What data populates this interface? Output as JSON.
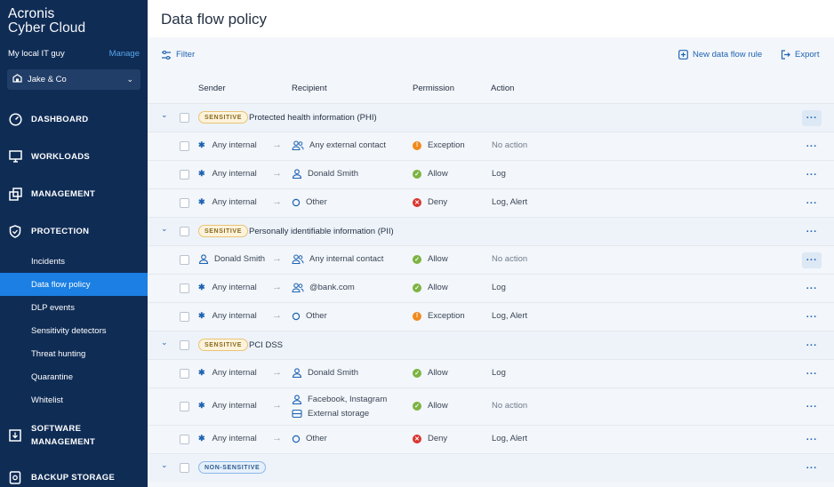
{
  "app": {
    "logo_line1": "Acronis",
    "logo_line2": "Cyber Cloud"
  },
  "account": {
    "name": "My local IT guy",
    "manage": "Manage"
  },
  "tenant": {
    "name": "Jake & Co"
  },
  "nav": {
    "dashboard": "DASHBOARD",
    "workloads": "WORKLOADS",
    "management": "MANAGEMENT",
    "protection": "PROTECTION",
    "software1": "SOFTWARE",
    "software2": "MANAGEMENT",
    "backup": "BACKUP STORAGE",
    "sub": [
      "Incidents",
      "Data flow policy",
      "DLP events",
      "Sensitivity detectors",
      "Threat hunting",
      "Quarantine",
      "Whitelist"
    ]
  },
  "page": {
    "title": "Data flow policy"
  },
  "toolbar": {
    "filter": "Filter",
    "new_rule": "New data flow rule",
    "export": "Export"
  },
  "table": {
    "headers": {
      "sender": "Sender",
      "recipient": "Recipient",
      "permission": "Permission",
      "action": "Action"
    },
    "groups": [
      {
        "badge": "SENSITIVE",
        "title": "Protected health information (PHI)"
      },
      {
        "badge": "SENSITIVE",
        "title": "Personally identifiable information (PII)"
      },
      {
        "badge": "SENSITIVE",
        "title": "PCI DSS"
      },
      {
        "badge": "NON-SENSITIVE",
        "title": ""
      }
    ],
    "rows": [
      {
        "sender": "Any internal",
        "recipient": "Any external contact",
        "permission": "Exception",
        "action": "No action"
      },
      {
        "sender": "Any internal",
        "recipient": "Donald Smith",
        "permission": "Allow",
        "action": "Log"
      },
      {
        "sender": "Any internal",
        "recipient": "Other",
        "permission": "Deny",
        "action": "Log, Alert"
      },
      {
        "sender": "Donald Smith",
        "recipient": "Any internal contact",
        "permission": "Allow",
        "action": "No action"
      },
      {
        "sender": "Any internal",
        "recipient": "@bank.com",
        "permission": "Allow",
        "action": "Log"
      },
      {
        "sender": "Any internal",
        "recipient": "Other",
        "permission": "Exception",
        "action": "Log, Alert"
      },
      {
        "sender": "Any internal",
        "recipient": "Donald Smith",
        "permission": "Allow",
        "action": "Log"
      },
      {
        "sender": "Any internal",
        "recipient": "Facebook, Instagram",
        "recipient2": "External storage",
        "permission": "Allow",
        "action": "No action"
      },
      {
        "sender": "Any internal",
        "recipient": "Other",
        "permission": "Deny",
        "action": "Log, Alert"
      }
    ]
  },
  "colors": {
    "sidebar": "#0f2c55",
    "active": "#1b7fe3",
    "accent": "#1f64b3",
    "allow": "#7cb342",
    "deny": "#d9352f",
    "exception": "#f08a1c"
  }
}
